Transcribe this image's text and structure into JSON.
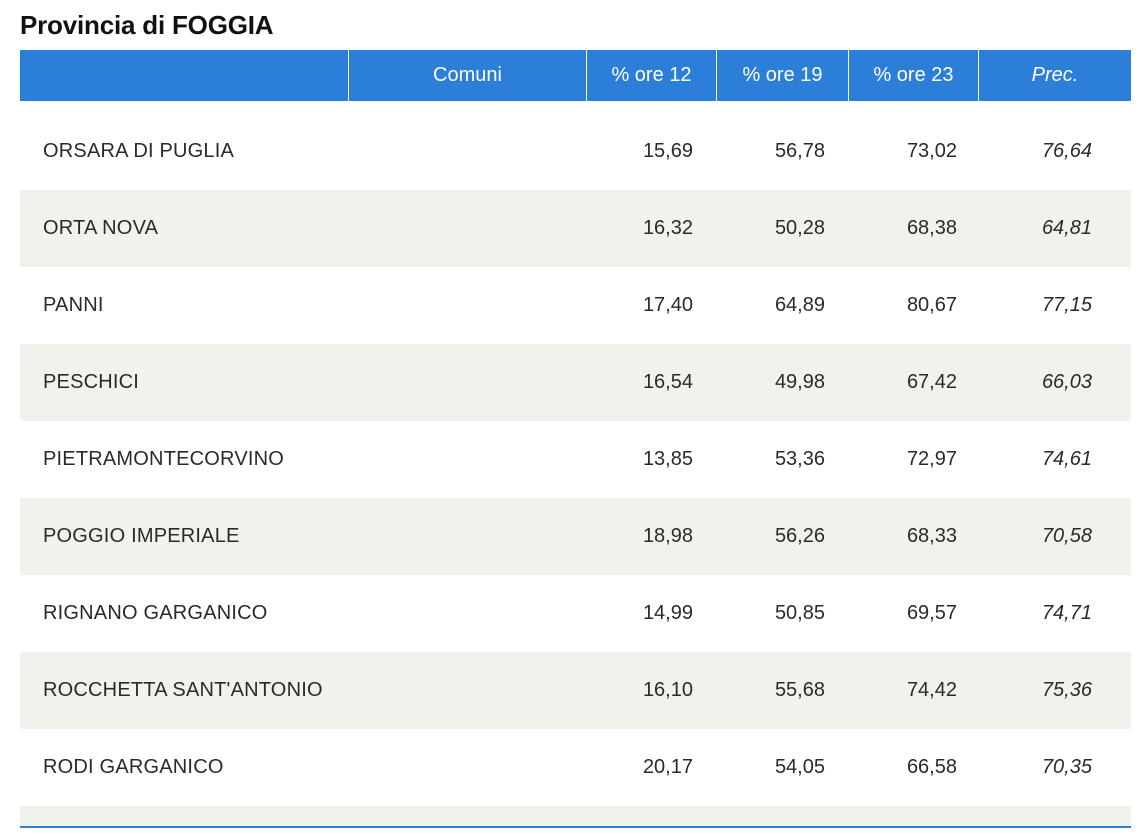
{
  "title": "Provincia di FOGGIA",
  "table": {
    "headers": [
      "",
      "Comuni",
      "% ore 12",
      "% ore 19",
      "% ore 23",
      "Prec."
    ],
    "rows": [
      {
        "name": "ORSARA DI PUGLIA",
        "v12": "15,69",
        "v19": "56,78",
        "v23": "73,02",
        "prec": "76,64"
      },
      {
        "name": "ORTA NOVA",
        "v12": "16,32",
        "v19": "50,28",
        "v23": "68,38",
        "prec": "64,81"
      },
      {
        "name": "PANNI",
        "v12": "17,40",
        "v19": "64,89",
        "v23": "80,67",
        "prec": "77,15"
      },
      {
        "name": "PESCHICI",
        "v12": "16,54",
        "v19": "49,98",
        "v23": "67,42",
        "prec": "66,03"
      },
      {
        "name": "PIETRAMONTECORVINO",
        "v12": "13,85",
        "v19": "53,36",
        "v23": "72,97",
        "prec": "74,61"
      },
      {
        "name": "POGGIO IMPERIALE",
        "v12": "18,98",
        "v19": "56,26",
        "v23": "68,33",
        "prec": "70,58"
      },
      {
        "name": "RIGNANO GARGANICO",
        "v12": "14,99",
        "v19": "50,85",
        "v23": "69,57",
        "prec": "74,71"
      },
      {
        "name": "ROCCHETTA SANT'ANTONIO",
        "v12": "16,10",
        "v19": "55,68",
        "v23": "74,42",
        "prec": "75,36"
      },
      {
        "name": "RODI GARGANICO",
        "v12": "20,17",
        "v19": "54,05",
        "v23": "66,58",
        "prec": "70,35"
      }
    ]
  },
  "colors": {
    "header_bg": "#2c7fd9",
    "header_text": "#ffffff",
    "alt_row_bg": "#f2f2ec"
  }
}
